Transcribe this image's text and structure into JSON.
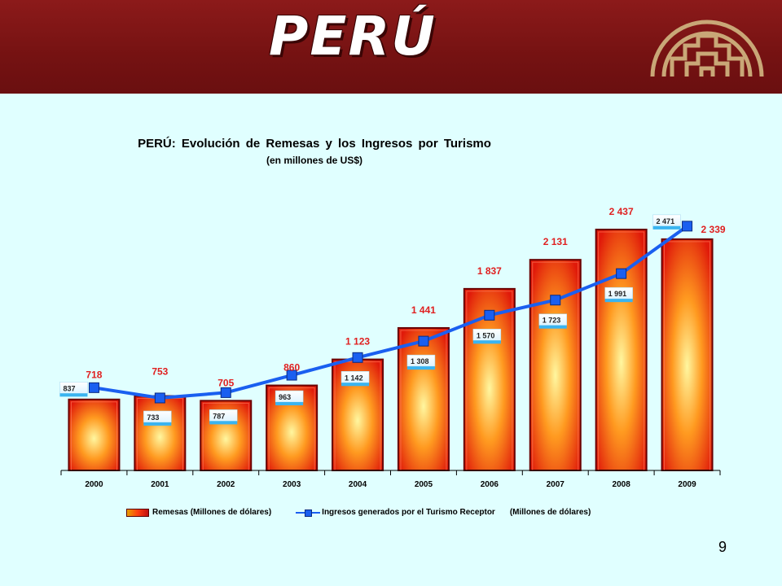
{
  "slide": {
    "title": "PERÚ",
    "page_number": "9",
    "logo_icon": "andean-community-logo-icon",
    "header_color": "#7d1515",
    "background_color": "#e0ffff"
  },
  "chart_data": {
    "type": "bar",
    "title": "PERÚ: Evolución de Remesas y los Ingresos por Turismo",
    "subtitle": "(en millones de US$)",
    "categories": [
      "2000",
      "2001",
      "2002",
      "2003",
      "2004",
      "2005",
      "2006",
      "2007",
      "2008",
      "2009"
    ],
    "ylim": [
      0,
      2600
    ],
    "grid": false,
    "legend_position": "bottom",
    "series": [
      {
        "name": "Remesas (Millones de dólares)",
        "type": "bar",
        "color": "#e83010",
        "label_color": "#e02020",
        "values": [
          718,
          753,
          705,
          860,
          1123,
          1441,
          1837,
          2131,
          2437,
          2339
        ],
        "labels": [
          "718",
          "753",
          "705",
          "860",
          "1 123",
          "1 441",
          "1 837",
          "2 131",
          "2 437",
          "2 339"
        ]
      },
      {
        "name": "Ingresos generados por el Turismo Receptor",
        "name_suffix": "(Millones de dólares)",
        "type": "line",
        "color": "#1a5ff0",
        "values": [
          837,
          733,
          787,
          963,
          1142,
          1308,
          1570,
          1723,
          1991,
          2471
        ],
        "labels": [
          "837",
          "733",
          "787",
          "963",
          "1 142",
          "1 308",
          "1 570",
          "1 723",
          "1 991",
          "2 471"
        ]
      }
    ]
  }
}
